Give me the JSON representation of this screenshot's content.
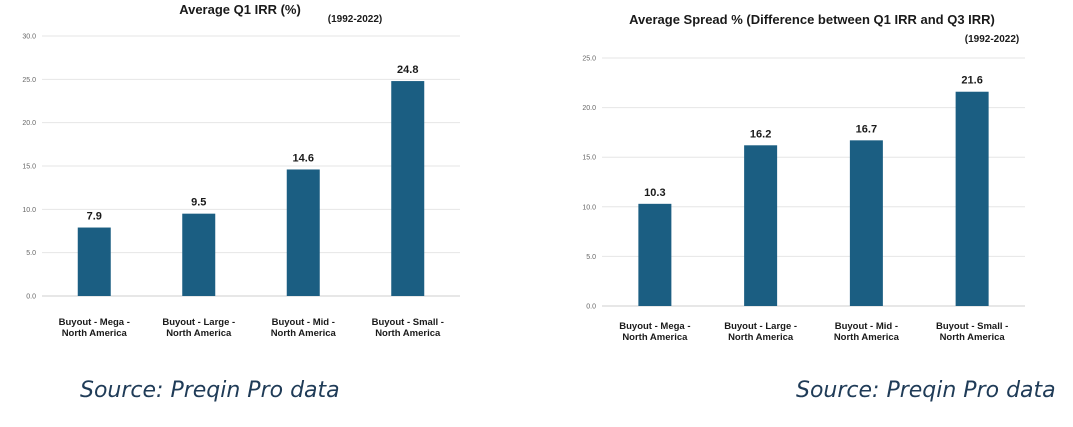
{
  "colors": {
    "bar": "#1b5e82"
  },
  "left": {
    "source": "Source: Preqin Pro data",
    "chart_data": {
      "type": "bar",
      "title": "Average Q1 IRR (%)",
      "subtitle": "(1992-2022)",
      "categories": [
        [
          "Buyout - Mega -",
          "North America"
        ],
        [
          "Buyout - Large -",
          "North America"
        ],
        [
          "Buyout - Mid -",
          "North America"
        ],
        [
          "Buyout - Small -",
          "North America"
        ]
      ],
      "values": [
        7.9,
        9.5,
        14.6,
        24.8
      ],
      "value_labels": [
        "7.9",
        "9.5",
        "14.6",
        "24.8"
      ],
      "ylim": [
        0,
        30
      ],
      "yticks": [
        "0.0",
        "5.0",
        "10.0",
        "15.0",
        "20.0",
        "25.0",
        "30.0"
      ],
      "grid": true
    }
  },
  "right": {
    "source": "Source: Preqin Pro data",
    "chart_data": {
      "type": "bar",
      "title": "Average Spread % (Difference between Q1 IRR and Q3 IRR)",
      "subtitle": "(1992-2022)",
      "categories": [
        [
          "Buyout - Mega -",
          "North America"
        ],
        [
          "Buyout - Large -",
          "North America"
        ],
        [
          "Buyout - Mid -",
          "North America"
        ],
        [
          "Buyout - Small -",
          "North America"
        ]
      ],
      "values": [
        10.3,
        16.2,
        16.7,
        21.6
      ],
      "value_labels": [
        "10.3",
        "16.2",
        "16.7",
        "21.6"
      ],
      "ylim": [
        0,
        25
      ],
      "yticks": [
        "0.0",
        "5.0",
        "10.0",
        "15.0",
        "20.0",
        "25.0"
      ],
      "grid": true
    }
  }
}
